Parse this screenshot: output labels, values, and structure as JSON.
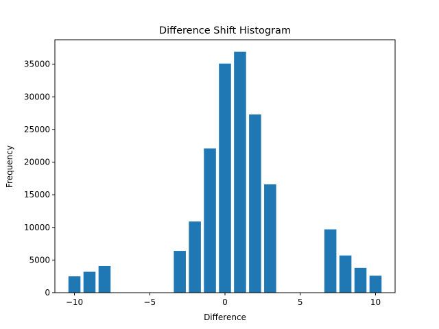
{
  "chart_data": {
    "type": "bar",
    "title": "Difference Shift Histogram",
    "xlabel": "Difference",
    "ylabel": "Frequency",
    "x": [
      -10,
      -9,
      -8,
      -3,
      -2,
      -1,
      0,
      1,
      2,
      3,
      7,
      8,
      9,
      10
    ],
    "values": [
      2500,
      3200,
      4100,
      6400,
      10900,
      22100,
      35100,
      36900,
      27300,
      16600,
      9700,
      5700,
      3800,
      2600
    ],
    "xlim": [
      -11.3,
      11.3
    ],
    "ylim": [
      0,
      38745
    ],
    "xticks": [
      -10,
      -5,
      0,
      5,
      10
    ],
    "xtick_labels": [
      "−10",
      "−5",
      "0",
      "5",
      "10"
    ],
    "yticks": [
      0,
      5000,
      10000,
      15000,
      20000,
      25000,
      30000,
      35000
    ],
    "ytick_labels": [
      "0",
      "5000",
      "10000",
      "15000",
      "20000",
      "25000",
      "30000",
      "35000"
    ],
    "grid": false,
    "bar_color": "#1f77b4"
  }
}
